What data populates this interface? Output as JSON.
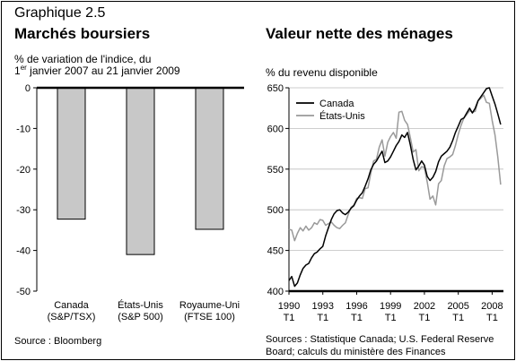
{
  "figure_number": "Graphique 2.5",
  "charts": [
    {
      "title": "Marchés boursiers",
      "subtitle_line1": "% de variation de l'indice, du",
      "subtitle_line2_prefix": "1",
      "subtitle_line2_sup": "er",
      "subtitle_line2_rest": " janvier 2007 au 21 janvier 2009",
      "source": "Source : Bloomberg"
    },
    {
      "title": "Valeur nette des ménages",
      "subtitle": "% du revenu disponible",
      "source": "Sources : Statistique Canada; U.S. Federal Reserve Board; calculs du ministère des Finances"
    }
  ],
  "colors": {
    "bar_fill": "#c8c8c8",
    "canada_line": "#000000",
    "us_line": "#9a9a9a"
  },
  "chart_data": [
    {
      "type": "bar",
      "categories": [
        "Canada (S&P/TSX)",
        "États-Unis (S&P 500)",
        "Royaume-Uni (FTSE 100)"
      ],
      "category_lines": [
        [
          "Canada",
          "(S&P/TSX)"
        ],
        [
          "États-Unis",
          "(S&P 500)"
        ],
        [
          "Royaume-Uni",
          "(FTSE 100)"
        ]
      ],
      "values": [
        -32.3,
        -41.0,
        -34.8
      ],
      "ylim": [
        -50,
        0
      ],
      "yticks": [
        0,
        -10,
        -20,
        -30,
        -40,
        -50
      ],
      "ytick_labels": [
        "0",
        "-10",
        "-20",
        "-30",
        "-40",
        "-50"
      ],
      "grid": false
    },
    {
      "type": "line",
      "ylim": [
        400,
        650
      ],
      "yticks": [
        400,
        450,
        500,
        550,
        600,
        650
      ],
      "xlim": [
        1990,
        2009
      ],
      "xtick_years": [
        1990,
        1993,
        1996,
        1999,
        2002,
        2005,
        2008
      ],
      "xtick_sublabel": "T1",
      "legend_placement": "top-left",
      "grid": true,
      "series": [
        {
          "name": "Canada",
          "points": [
            [
              1990.0,
              413
            ],
            [
              1990.25,
              418
            ],
            [
              1990.5,
              406
            ],
            [
              1990.75,
              410
            ],
            [
              1991.0,
              420
            ],
            [
              1991.25,
              428
            ],
            [
              1991.5,
              432
            ],
            [
              1991.75,
              434
            ],
            [
              1992.0,
              441
            ],
            [
              1992.25,
              446
            ],
            [
              1992.5,
              448
            ],
            [
              1992.75,
              452
            ],
            [
              1993.0,
              455
            ],
            [
              1993.25,
              468
            ],
            [
              1993.5,
              478
            ],
            [
              1993.75,
              488
            ],
            [
              1994.0,
              495
            ],
            [
              1994.25,
              499
            ],
            [
              1994.5,
              500
            ],
            [
              1994.75,
              496
            ],
            [
              1995.0,
              494
            ],
            [
              1995.25,
              497
            ],
            [
              1995.5,
              502
            ],
            [
              1995.75,
              505
            ],
            [
              1996.0,
              512
            ],
            [
              1996.25,
              517
            ],
            [
              1996.5,
              521
            ],
            [
              1996.75,
              529
            ],
            [
              1997.0,
              538
            ],
            [
              1997.25,
              549
            ],
            [
              1997.5,
              556
            ],
            [
              1997.75,
              560
            ],
            [
              1998.0,
              566
            ],
            [
              1998.25,
              572
            ],
            [
              1998.5,
              558
            ],
            [
              1998.75,
              560
            ],
            [
              1999.0,
              565
            ],
            [
              1999.25,
              572
            ],
            [
              1999.5,
              579
            ],
            [
              1999.75,
              584
            ],
            [
              2000.0,
              592
            ],
            [
              2000.25,
              589
            ],
            [
              2000.5,
              595
            ],
            [
              2000.75,
              580
            ],
            [
              2001.0,
              562
            ],
            [
              2001.25,
              549
            ],
            [
              2001.5,
              554
            ],
            [
              2001.75,
              560
            ],
            [
              2002.0,
              555
            ],
            [
              2002.25,
              541
            ],
            [
              2002.5,
              536
            ],
            [
              2002.75,
              540
            ],
            [
              2003.0,
              547
            ],
            [
              2003.25,
              559
            ],
            [
              2003.5,
              566
            ],
            [
              2003.75,
              569
            ],
            [
              2004.0,
              572
            ],
            [
              2004.25,
              577
            ],
            [
              2004.5,
              585
            ],
            [
              2004.75,
              595
            ],
            [
              2005.0,
              603
            ],
            [
              2005.25,
              611
            ],
            [
              2005.5,
              613
            ],
            [
              2005.75,
              619
            ],
            [
              2006.0,
              625
            ],
            [
              2006.25,
              619
            ],
            [
              2006.5,
              625
            ],
            [
              2006.75,
              634
            ],
            [
              2007.0,
              639
            ],
            [
              2007.25,
              644
            ],
            [
              2007.5,
              649
            ],
            [
              2007.75,
              650
            ],
            [
              2008.0,
              640
            ],
            [
              2008.25,
              630
            ],
            [
              2008.5,
              618
            ],
            [
              2008.75,
              605
            ]
          ]
        },
        {
          "name": "États-Unis",
          "points": [
            [
              1990.0,
              476
            ],
            [
              1990.25,
              475
            ],
            [
              1990.5,
              462
            ],
            [
              1990.75,
              471
            ],
            [
              1991.0,
              478
            ],
            [
              1991.25,
              474
            ],
            [
              1991.5,
              480
            ],
            [
              1991.75,
              475
            ],
            [
              1992.0,
              478
            ],
            [
              1992.25,
              484
            ],
            [
              1992.5,
              482
            ],
            [
              1992.75,
              488
            ],
            [
              1993.0,
              487
            ],
            [
              1993.25,
              481
            ],
            [
              1993.5,
              483
            ],
            [
              1993.75,
              485
            ],
            [
              1994.0,
              481
            ],
            [
              1994.25,
              478
            ],
            [
              1994.5,
              477
            ],
            [
              1994.75,
              481
            ],
            [
              1995.0,
              484
            ],
            [
              1995.25,
              494
            ],
            [
              1995.5,
              503
            ],
            [
              1995.75,
              506
            ],
            [
              1996.0,
              514
            ],
            [
              1996.25,
              515
            ],
            [
              1996.5,
              514
            ],
            [
              1996.75,
              526
            ],
            [
              1997.0,
              527
            ],
            [
              1997.25,
              545
            ],
            [
              1997.5,
              560
            ],
            [
              1997.75,
              562
            ],
            [
              1998.0,
              577
            ],
            [
              1998.25,
              586
            ],
            [
              1998.5,
              566
            ],
            [
              1998.75,
              583
            ],
            [
              1999.0,
              590
            ],
            [
              1999.25,
              595
            ],
            [
              1999.5,
              588
            ],
            [
              1999.75,
              620
            ],
            [
              2000.0,
              621
            ],
            [
              2000.25,
              610
            ],
            [
              2000.5,
              605
            ],
            [
              2000.75,
              589
            ],
            [
              2001.0,
              571
            ],
            [
              2001.25,
              574
            ],
            [
              2001.5,
              548
            ],
            [
              2001.75,
              553
            ],
            [
              2002.0,
              552
            ],
            [
              2002.25,
              534
            ],
            [
              2002.5,
              513
            ],
            [
              2002.75,
              517
            ],
            [
              2003.0,
              506
            ],
            [
              2003.25,
              532
            ],
            [
              2003.5,
              536
            ],
            [
              2003.75,
              554
            ],
            [
              2004.0,
              563
            ],
            [
              2004.25,
              565
            ],
            [
              2004.5,
              568
            ],
            [
              2004.75,
              579
            ],
            [
              2005.0,
              593
            ],
            [
              2005.25,
              604
            ],
            [
              2005.5,
              613
            ],
            [
              2005.75,
              617
            ],
            [
              2006.0,
              622
            ],
            [
              2006.25,
              620
            ],
            [
              2006.5,
              621
            ],
            [
              2006.75,
              634
            ],
            [
              2007.0,
              637
            ],
            [
              2007.25,
              641
            ],
            [
              2007.5,
              632
            ],
            [
              2007.75,
              631
            ],
            [
              2008.0,
              610
            ],
            [
              2008.25,
              592
            ],
            [
              2008.5,
              565
            ],
            [
              2008.75,
              531
            ]
          ]
        }
      ]
    }
  ]
}
